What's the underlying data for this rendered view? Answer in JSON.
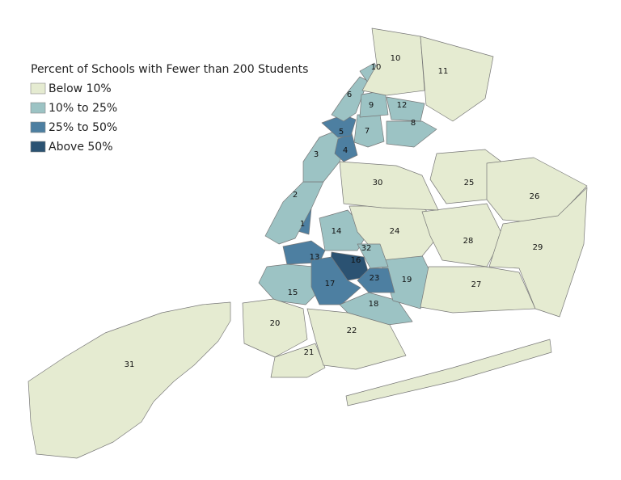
{
  "legend": {
    "title": "Percent of Schools with Fewer than 200 Students",
    "items": [
      {
        "label": "Below 10%",
        "color": "#e5ebd1"
      },
      {
        "label": "10% to 25%",
        "color": "#9cc3c4"
      },
      {
        "label": "25% to 50%",
        "color": "#4d7fa1"
      },
      {
        "label": "Above 50%",
        "color": "#2b5272"
      }
    ]
  },
  "districts": [
    {
      "label": "1",
      "class": 2
    },
    {
      "label": "2",
      "class": 1
    },
    {
      "label": "3",
      "class": 1
    },
    {
      "label": "4",
      "class": 2
    },
    {
      "label": "5",
      "class": 2
    },
    {
      "label": "6",
      "class": 1
    },
    {
      "label": "7",
      "class": 1
    },
    {
      "label": "8",
      "class": 1
    },
    {
      "label": "9",
      "class": 1
    },
    {
      "label": "10",
      "class": 1
    },
    {
      "label": "10",
      "class": 0
    },
    {
      "label": "11",
      "class": 0
    },
    {
      "label": "12",
      "class": 1
    },
    {
      "label": "13",
      "class": 2
    },
    {
      "label": "14",
      "class": 1
    },
    {
      "label": "15",
      "class": 1
    },
    {
      "label": "16",
      "class": 3
    },
    {
      "label": "17",
      "class": 2
    },
    {
      "label": "18",
      "class": 1
    },
    {
      "label": "19",
      "class": 1
    },
    {
      "label": "20",
      "class": 0
    },
    {
      "label": "21",
      "class": 0
    },
    {
      "label": "22",
      "class": 0
    },
    {
      "label": "23",
      "class": 2
    },
    {
      "label": "24",
      "class": 0
    },
    {
      "label": "25",
      "class": 0
    },
    {
      "label": "26",
      "class": 0
    },
    {
      "label": "27",
      "class": 0
    },
    {
      "label": "28",
      "class": 0
    },
    {
      "label": "29",
      "class": 0
    },
    {
      "label": "30",
      "class": 0
    },
    {
      "label": "31",
      "class": 0
    },
    {
      "label": "32",
      "class": 1
    }
  ]
}
